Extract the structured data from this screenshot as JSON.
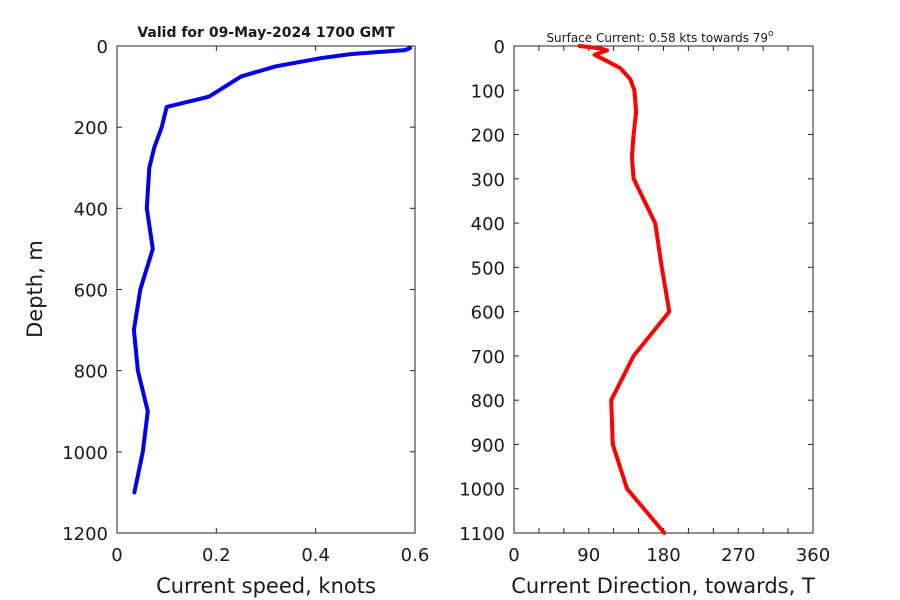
{
  "chart_data": [
    {
      "type": "line",
      "title": "Valid for 09-May-2024 1700 GMT",
      "xlabel": "Current speed, knots",
      "ylabel": "Depth, m",
      "xlim": [
        0,
        0.6
      ],
      "ylim": [
        0,
        1200
      ],
      "y_reversed": true,
      "xticks": [
        "0",
        "0.2",
        "0.4",
        "0.6"
      ],
      "yticks": [
        "0",
        "200",
        "400",
        "600",
        "800",
        "1000",
        "1200"
      ],
      "series": [
        {
          "color": "#0000ee",
          "x": [
            0.59,
            0.58,
            0.47,
            0.41,
            0.32,
            0.25,
            0.185,
            0.1,
            0.09,
            0.075,
            0.065,
            0.06,
            0.072,
            0.047,
            0.034,
            0.042,
            0.062,
            0.052,
            0.035
          ],
          "y": [
            5,
            10,
            20,
            30,
            50,
            75,
            125,
            150,
            200,
            250,
            300,
            400,
            500,
            600,
            700,
            800,
            900,
            1000,
            1100
          ]
        }
      ]
    },
    {
      "type": "line",
      "title": "Surface Current: 0.58 kts towards 79",
      "title_degree": "o",
      "xlabel": "Current Direction, towards, T",
      "ylabel": "",
      "xlim": [
        0,
        360
      ],
      "ylim": [
        0,
        1100
      ],
      "y_reversed": true,
      "xticks": [
        "0",
        "90",
        "180",
        "270",
        "360"
      ],
      "yticks": [
        "0",
        "100",
        "200",
        "300",
        "400",
        "500",
        "600",
        "700",
        "800",
        "900",
        "1000",
        "1100"
      ],
      "series": [
        {
          "color": "#ff0000",
          "x": [
            79,
            103,
            112,
            104,
            97,
            108,
            128,
            140,
            145,
            146,
            147,
            144,
            142,
            144,
            170,
            178,
            187,
            144,
            117,
            119,
            136,
            181
          ],
          "y": [
            0,
            5,
            10,
            15,
            20,
            30,
            50,
            75,
            100,
            125,
            150,
            200,
            250,
            300,
            400,
            500,
            600,
            700,
            800,
            900,
            1000,
            1100
          ]
        }
      ]
    }
  ]
}
